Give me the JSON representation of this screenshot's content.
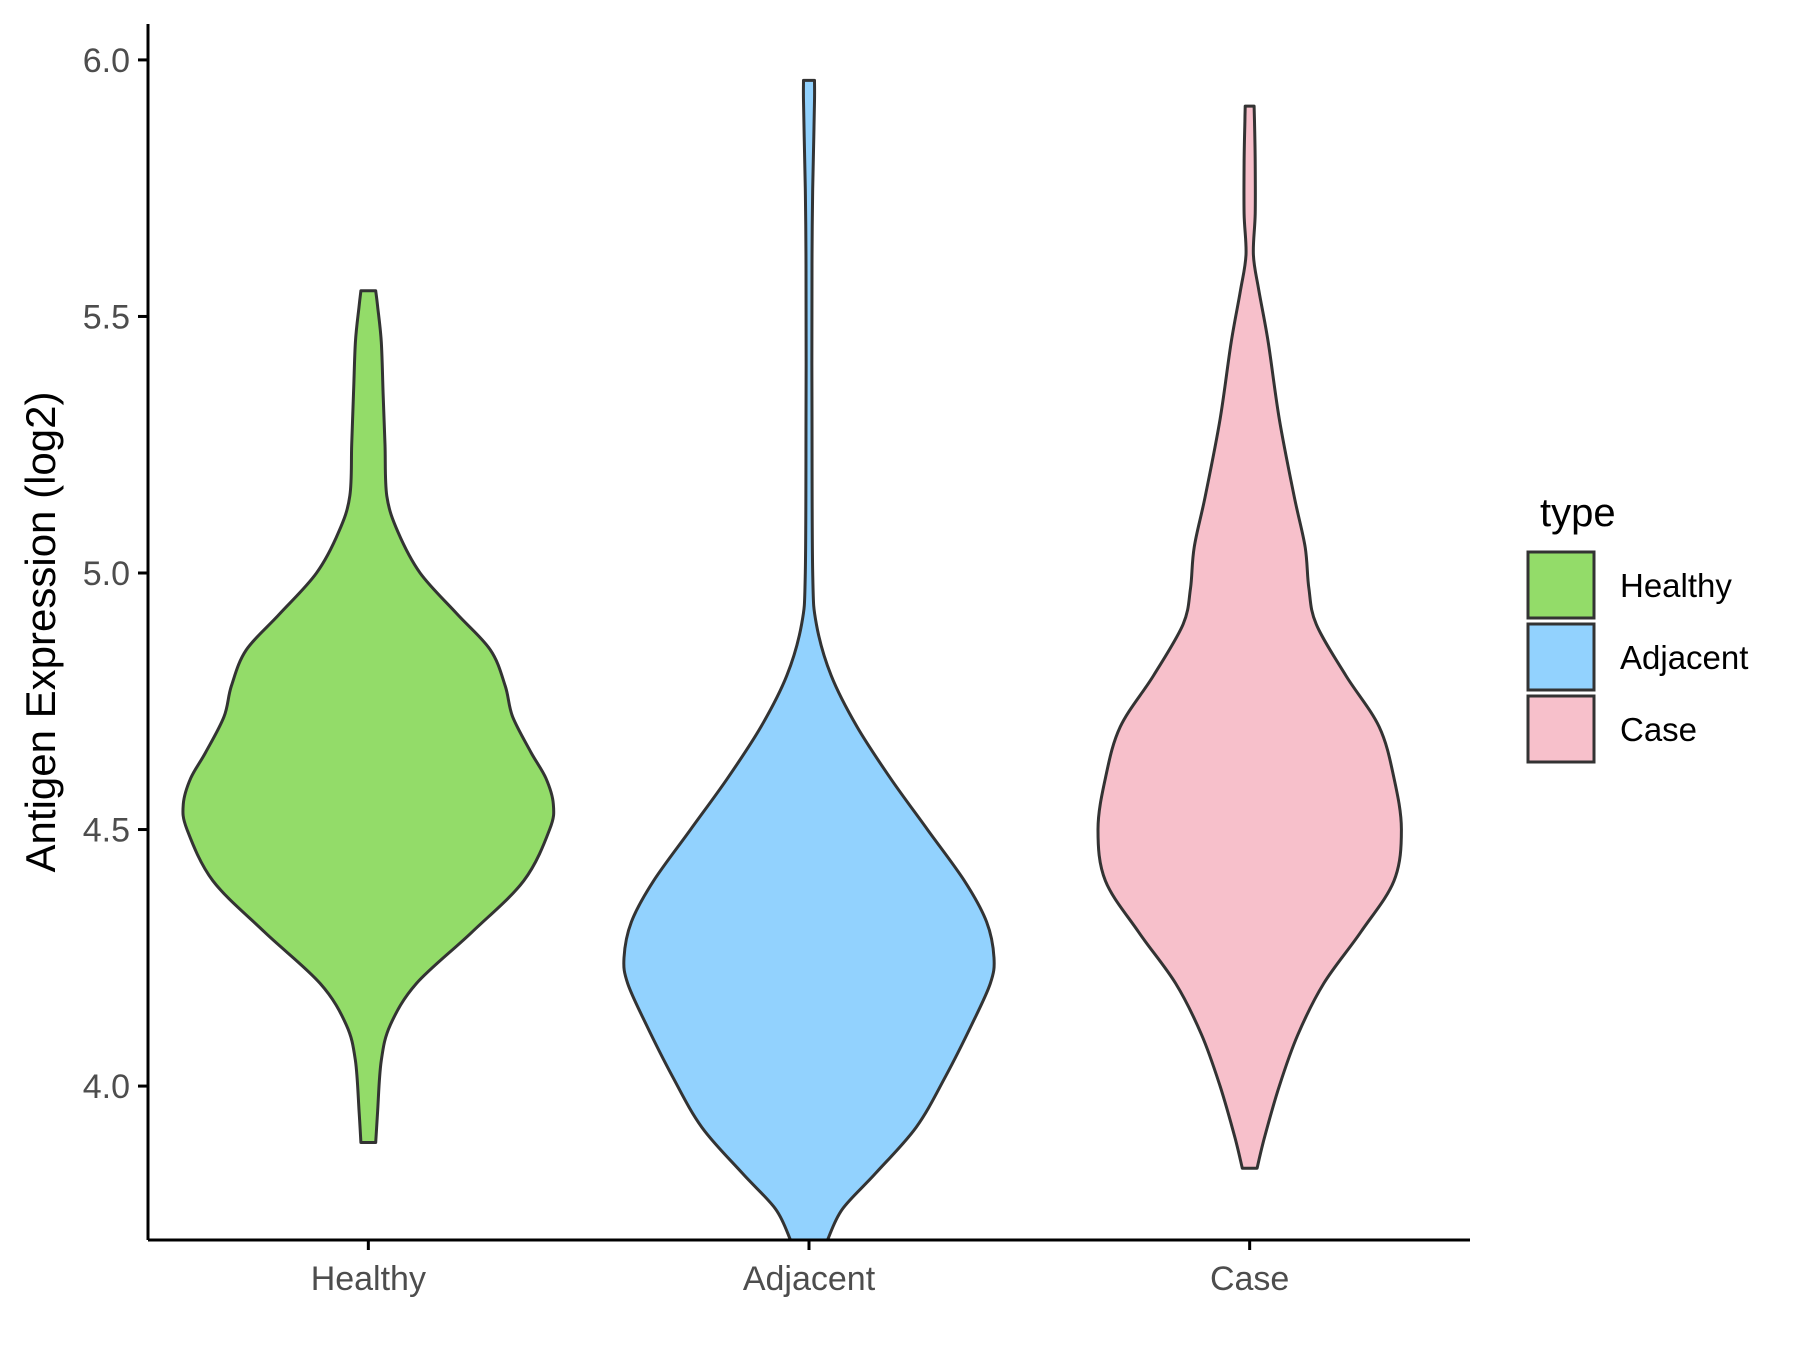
{
  "chart_data": {
    "type": "violin",
    "xlabel": "",
    "ylabel": "Antigen Expression (log2)",
    "ylim": [
      3.7,
      6.07
    ],
    "y_ticks": [
      "4.0",
      "4.5",
      "5.0",
      "5.5",
      "6.0"
    ],
    "y_tick_values": [
      4.0,
      4.5,
      5.0,
      5.5,
      6.0
    ],
    "grid": false,
    "legend_position": "right",
    "legend_title": "type",
    "categories": [
      "Healthy",
      "Adjacent",
      "Case"
    ],
    "series": [
      {
        "name": "Healthy",
        "color": "#93dc69",
        "min": 3.89,
        "max": 5.55,
        "profile": [
          [
            3.89,
            0.02
          ],
          [
            3.95,
            0.025
          ],
          [
            4.05,
            0.035
          ],
          [
            4.12,
            0.06
          ],
          [
            4.2,
            0.13
          ],
          [
            4.3,
            0.28
          ],
          [
            4.4,
            0.42
          ],
          [
            4.5,
            0.49
          ],
          [
            4.55,
            0.5
          ],
          [
            4.6,
            0.48
          ],
          [
            4.65,
            0.44
          ],
          [
            4.72,
            0.39
          ],
          [
            4.78,
            0.37
          ],
          [
            4.85,
            0.33
          ],
          [
            4.92,
            0.24
          ],
          [
            5.0,
            0.14
          ],
          [
            5.08,
            0.08
          ],
          [
            5.15,
            0.05
          ],
          [
            5.25,
            0.045
          ],
          [
            5.35,
            0.04
          ],
          [
            5.45,
            0.035
          ],
          [
            5.52,
            0.025
          ],
          [
            5.55,
            0.02
          ]
        ]
      },
      {
        "name": "Adjacent",
        "color": "#92d2fe",
        "min": 3.7,
        "max": 5.96,
        "profile": [
          [
            3.7,
            0.05
          ],
          [
            3.76,
            0.09
          ],
          [
            3.83,
            0.18
          ],
          [
            3.92,
            0.29
          ],
          [
            4.02,
            0.37
          ],
          [
            4.12,
            0.44
          ],
          [
            4.2,
            0.49
          ],
          [
            4.25,
            0.5
          ],
          [
            4.32,
            0.48
          ],
          [
            4.4,
            0.42
          ],
          [
            4.5,
            0.32
          ],
          [
            4.6,
            0.22
          ],
          [
            4.7,
            0.13
          ],
          [
            4.8,
            0.06
          ],
          [
            4.9,
            0.02
          ],
          [
            5.0,
            0.01
          ],
          [
            5.3,
            0.008
          ],
          [
            5.6,
            0.008
          ],
          [
            5.75,
            0.01
          ],
          [
            5.85,
            0.013
          ],
          [
            5.92,
            0.015
          ],
          [
            5.96,
            0.015
          ]
        ]
      },
      {
        "name": "Case",
        "color": "#f7c0cb",
        "min": 3.84,
        "max": 5.91,
        "profile": [
          [
            3.84,
            0.02
          ],
          [
            3.9,
            0.04
          ],
          [
            4.0,
            0.08
          ],
          [
            4.1,
            0.13
          ],
          [
            4.2,
            0.2
          ],
          [
            4.3,
            0.3
          ],
          [
            4.4,
            0.39
          ],
          [
            4.5,
            0.41
          ],
          [
            4.6,
            0.39
          ],
          [
            4.7,
            0.35
          ],
          [
            4.8,
            0.26
          ],
          [
            4.9,
            0.18
          ],
          [
            4.97,
            0.16
          ],
          [
            5.05,
            0.15
          ],
          [
            5.15,
            0.12
          ],
          [
            5.3,
            0.08
          ],
          [
            5.45,
            0.05
          ],
          [
            5.55,
            0.025
          ],
          [
            5.62,
            0.01
          ],
          [
            5.7,
            0.015
          ],
          [
            5.8,
            0.015
          ],
          [
            5.88,
            0.013
          ],
          [
            5.91,
            0.012
          ]
        ]
      }
    ]
  }
}
